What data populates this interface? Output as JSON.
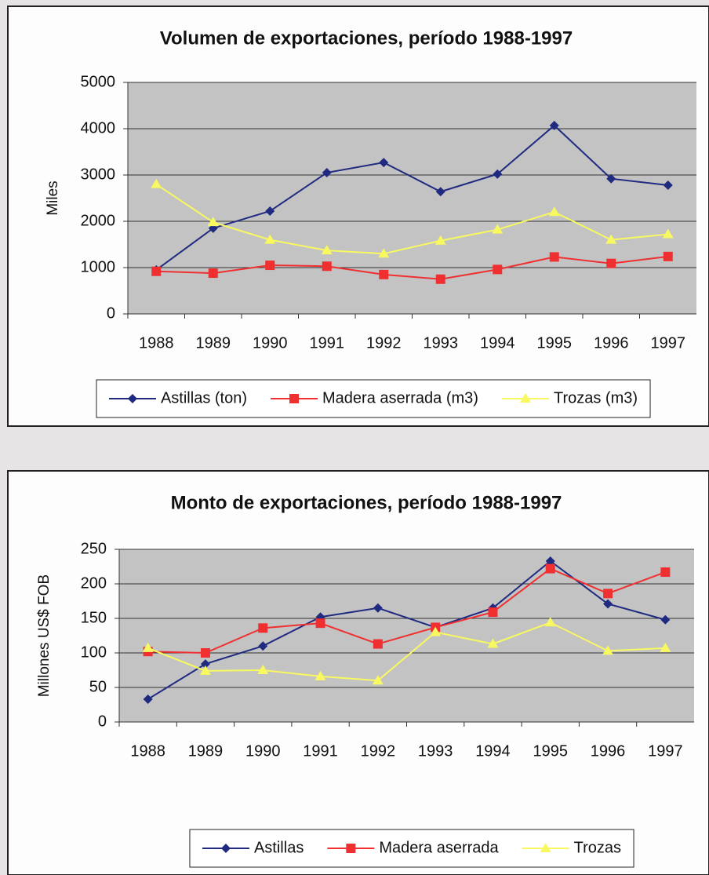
{
  "chart_data": [
    {
      "type": "line",
      "title": "Volumen de exportaciones, período 1988-1997",
      "ylabel": "Miles",
      "categories": [
        "1988",
        "1989",
        "1990",
        "1991",
        "1992",
        "1993",
        "1994",
        "1995",
        "1996",
        "1997"
      ],
      "ylim": [
        0,
        5000
      ],
      "yticks": [
        0,
        1000,
        2000,
        3000,
        4000,
        5000
      ],
      "grid": true,
      "legend": "bottom",
      "series": [
        {
          "name": "Astillas (ton)",
          "color": "#1f2a80",
          "marker": "diamond",
          "values": [
            950,
            1850,
            2220,
            3050,
            3270,
            2640,
            3020,
            4070,
            2920,
            2780
          ]
        },
        {
          "name": "Madera aserrada (m3)",
          "color": "#f03030",
          "marker": "square",
          "values": [
            920,
            880,
            1050,
            1030,
            850,
            750,
            960,
            1230,
            1090,
            1240
          ]
        },
        {
          "name": "Trozas (m3)",
          "color": "#f8f860",
          "marker": "triangle",
          "values": [
            2800,
            1980,
            1600,
            1370,
            1300,
            1580,
            1820,
            2200,
            1600,
            1720
          ]
        }
      ]
    },
    {
      "type": "line",
      "title": "Monto de exportaciones, período 1988-1997",
      "ylabel": "Millones US$ FOB",
      "categories": [
        "1988",
        "1989",
        "1990",
        "1991",
        "1992",
        "1993",
        "1994",
        "1995",
        "1996",
        "1997"
      ],
      "ylim": [
        0,
        250
      ],
      "yticks": [
        0,
        50,
        100,
        150,
        200,
        250
      ],
      "grid": true,
      "legend": "bottom",
      "series": [
        {
          "name": "Astillas",
          "color": "#1f2a80",
          "marker": "diamond",
          "values": [
            33,
            84,
            110,
            152,
            165,
            137,
            165,
            233,
            171,
            148
          ]
        },
        {
          "name": "Madera aserrada",
          "color": "#f03030",
          "marker": "square",
          "values": [
            102,
            100,
            136,
            143,
            113,
            137,
            159,
            222,
            186,
            217
          ]
        },
        {
          "name": "Trozas",
          "color": "#f8f860",
          "marker": "triangle",
          "values": [
            107,
            74,
            75,
            66,
            60,
            130,
            113,
            144,
            103,
            107
          ]
        }
      ]
    }
  ]
}
